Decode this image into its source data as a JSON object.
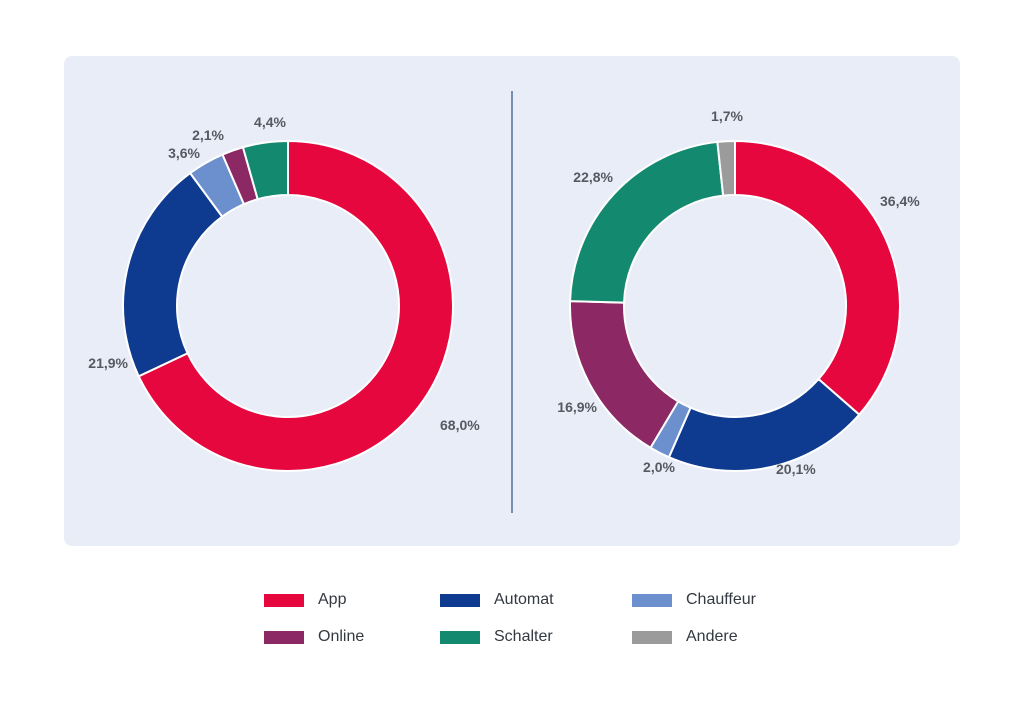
{
  "colors": {
    "App": "#e5073e",
    "Automat": "#0e3b8f",
    "Chauffeur": "#6c8fce",
    "Online": "#8c2864",
    "Schalter": "#138a6f",
    "Andere": "#9b9b9b",
    "panel_bg": "#e9edf8",
    "divider": "#2c4f8c"
  },
  "legend": [
    {
      "label": "App",
      "color": "#e5073e"
    },
    {
      "label": "Automat",
      "color": "#0e3b8f"
    },
    {
      "label": "Chauffeur",
      "color": "#6c8fce"
    },
    {
      "label": "Online",
      "color": "#8c2864"
    },
    {
      "label": "Schalter",
      "color": "#138a6f"
    },
    {
      "label": "Andere",
      "color": "#9b9b9b"
    }
  ],
  "chart_data": [
    {
      "type": "pie",
      "style": "donut",
      "title": "",
      "categories": [
        "App",
        "Automat",
        "Chauffeur",
        "Online",
        "Schalter",
        "Andere"
      ],
      "values": [
        68.0,
        21.9,
        3.6,
        2.1,
        4.4,
        0
      ],
      "labels": [
        "68,0%",
        "21,9%",
        "3,6%",
        "2,1%",
        "4,4%",
        ""
      ]
    },
    {
      "type": "pie",
      "style": "donut",
      "title": "",
      "categories": [
        "App",
        "Automat",
        "Chauffeur",
        "Online",
        "Schalter",
        "Andere"
      ],
      "values": [
        36.4,
        20.1,
        2.0,
        16.9,
        22.8,
        1.7
      ],
      "labels": [
        "36,4%",
        "20,1%",
        "2,0%",
        "16,9%",
        "22,8%",
        "1,7%"
      ]
    }
  ]
}
